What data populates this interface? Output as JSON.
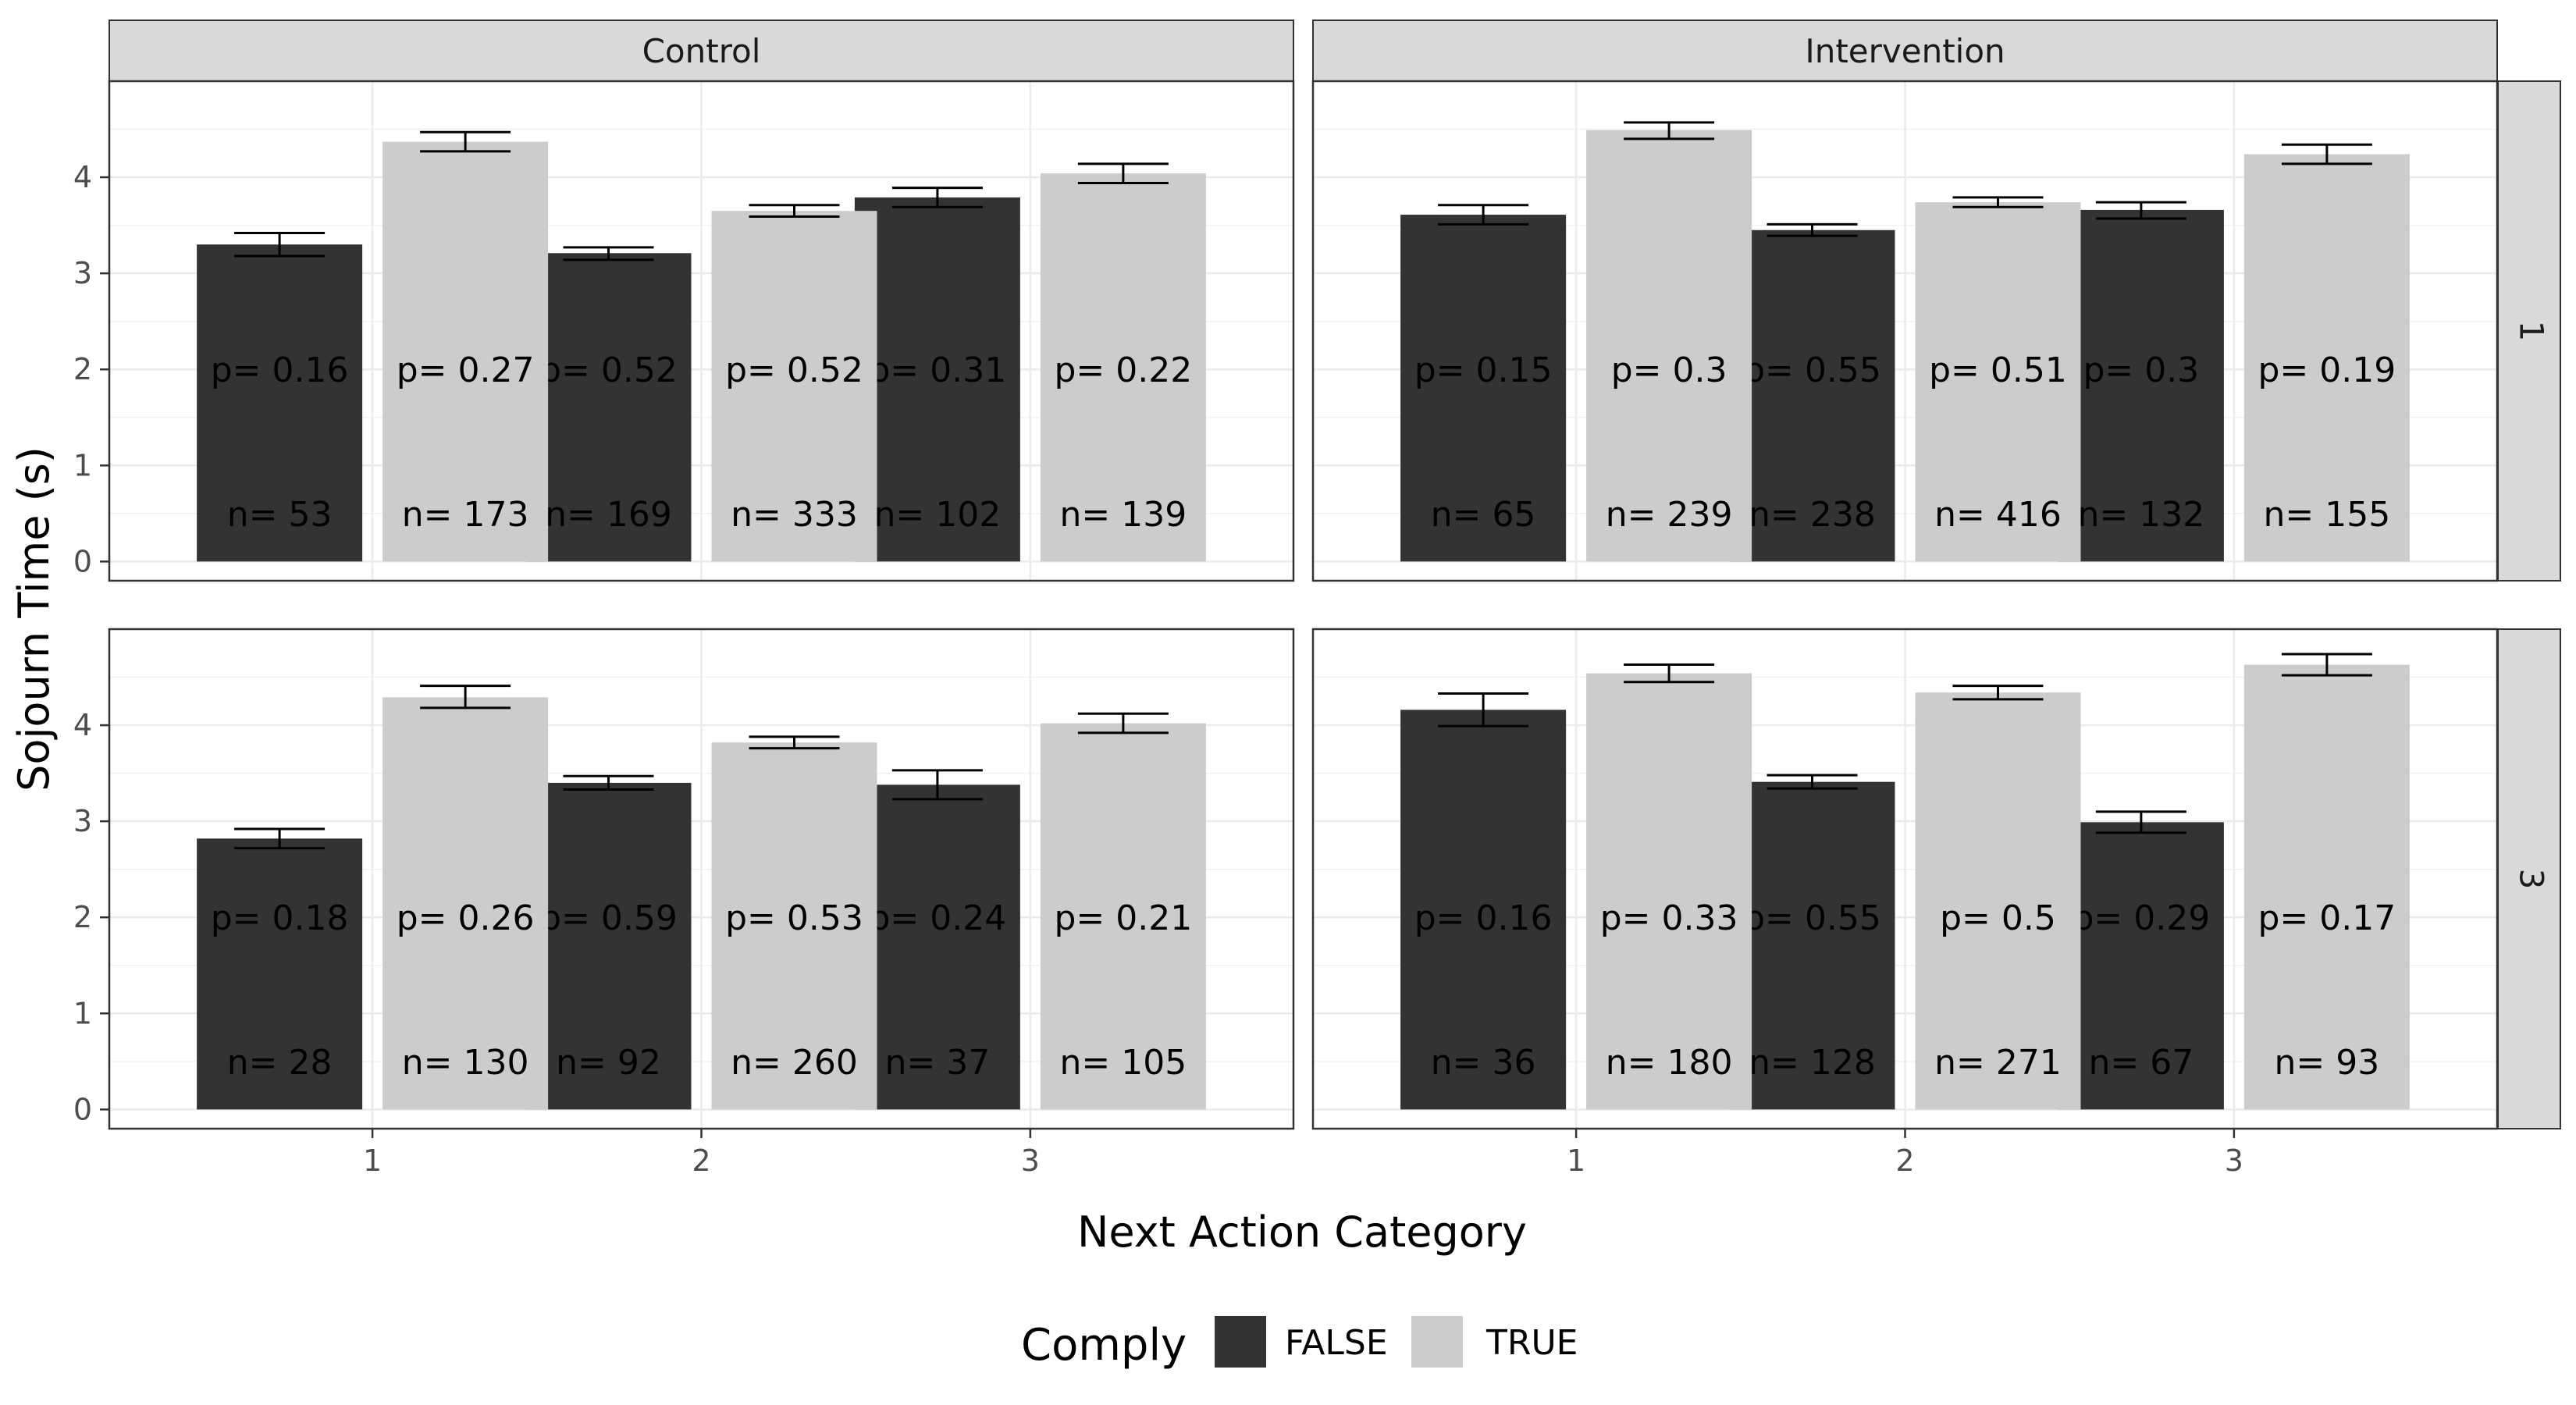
{
  "chart_data": {
    "type": "bar",
    "xlabel": "Next Action Category",
    "ylabel": "Sojourn Time (s)",
    "ylim": [
      -0.2,
      5.0
    ],
    "yticks": [
      "0",
      "1",
      "2",
      "3",
      "4"
    ],
    "categories": [
      "1",
      "2",
      "3"
    ],
    "grid": true,
    "legend": {
      "title": "Comply",
      "position": "bottom",
      "entries": [
        {
          "label": "FALSE",
          "color": "#333333"
        },
        {
          "label": "TRUE",
          "color": "#cccccc"
        }
      ]
    },
    "col_facets": [
      "Control",
      "Intervention"
    ],
    "row_facets": [
      "1",
      "3"
    ],
    "panels": [
      {
        "col": "Control",
        "row": "1",
        "series": [
          {
            "name": "FALSE",
            "values": [
              3.3,
              3.21,
              3.79
            ],
            "err_low": [
              3.18,
              3.14,
              3.69
            ],
            "err_high": [
              3.42,
              3.27,
              3.89
            ],
            "p": [
              "p= 0.16",
              "p= 0.52",
              "p= 0.31"
            ],
            "n": [
              "n= 53",
              "n= 169",
              "n= 102"
            ]
          },
          {
            "name": "TRUE",
            "values": [
              4.37,
              3.65,
              4.04
            ],
            "err_low": [
              4.27,
              3.59,
              3.94
            ],
            "err_high": [
              4.47,
              3.71,
              4.14
            ],
            "p": [
              "p= 0.27",
              "p= 0.52",
              "p= 0.22"
            ],
            "n": [
              "n= 173",
              "n= 333",
              "n= 139"
            ]
          }
        ]
      },
      {
        "col": "Intervention",
        "row": "1",
        "series": [
          {
            "name": "FALSE",
            "values": [
              3.61,
              3.45,
              3.66
            ],
            "err_low": [
              3.51,
              3.39,
              3.57
            ],
            "err_high": [
              3.71,
              3.51,
              3.74
            ],
            "p": [
              "p= 0.15",
              "p= 0.55",
              "p= 0.3"
            ],
            "n": [
              "n= 65",
              "n= 238",
              "n= 132"
            ]
          },
          {
            "name": "TRUE",
            "values": [
              4.49,
              3.74,
              4.24
            ],
            "err_low": [
              4.4,
              3.69,
              4.14
            ],
            "err_high": [
              4.57,
              3.79,
              4.34
            ],
            "p": [
              "p= 0.3",
              "p= 0.51",
              "p= 0.19"
            ],
            "n": [
              "n= 239",
              "n= 416",
              "n= 155"
            ]
          }
        ]
      },
      {
        "col": "Control",
        "row": "3",
        "series": [
          {
            "name": "FALSE",
            "values": [
              2.82,
              3.4,
              3.38
            ],
            "err_low": [
              2.72,
              3.33,
              3.23
            ],
            "err_high": [
              2.92,
              3.47,
              3.53
            ],
            "p": [
              "p= 0.18",
              "p= 0.59",
              "p= 0.24"
            ],
            "n": [
              "n= 28",
              "n= 92",
              "n= 37"
            ]
          },
          {
            "name": "TRUE",
            "values": [
              4.29,
              3.82,
              4.02
            ],
            "err_low": [
              4.18,
              3.76,
              3.92
            ],
            "err_high": [
              4.41,
              3.88,
              4.12
            ],
            "p": [
              "p= 0.26",
              "p= 0.53",
              "p= 0.21"
            ],
            "n": [
              "n= 130",
              "n= 260",
              "n= 105"
            ]
          }
        ]
      },
      {
        "col": "Intervention",
        "row": "3",
        "series": [
          {
            "name": "FALSE",
            "values": [
              4.16,
              3.41,
              2.99
            ],
            "err_low": [
              3.99,
              3.34,
              2.88
            ],
            "err_high": [
              4.33,
              3.48,
              3.1
            ],
            "p": [
              "p= 0.16",
              "p= 0.55",
              "p= 0.29"
            ],
            "n": [
              "n= 36",
              "n= 128",
              "n= 67"
            ]
          },
          {
            "name": "TRUE",
            "values": [
              4.54,
              4.34,
              4.63
            ],
            "err_low": [
              4.45,
              4.27,
              4.52
            ],
            "err_high": [
              4.63,
              4.41,
              4.74
            ],
            "p": [
              "p= 0.33",
              "p= 0.5",
              "p= 0.17"
            ],
            "n": [
              "n= 180",
              "n= 271",
              "n= 93"
            ]
          }
        ]
      }
    ]
  }
}
